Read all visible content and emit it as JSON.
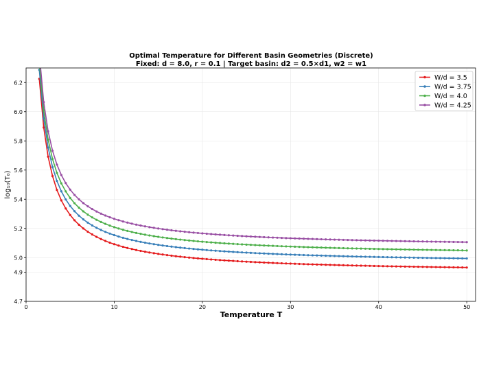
{
  "chart_data": {
    "type": "line",
    "title": "Optimal Temperature for Different Basin Geometries (Discrete)",
    "subtitle": "Fixed: d = 8.0, r = 0.1 | Target basin: d2 = 0.5×d1, w2 = w1",
    "xlabel": "Temperature T",
    "ylabel": "log₁₀(T₀)",
    "xlim": [
      0,
      51
    ],
    "ylim": [
      4.7,
      6.3
    ],
    "xticks": [
      0,
      10,
      20,
      30,
      40,
      50
    ],
    "yticks": [
      4.7,
      4.9,
      5.0,
      5.2,
      5.4,
      5.6,
      5.8,
      6.0,
      6.2
    ],
    "grid": true,
    "legend_position": "top-right",
    "x_start": 1.5,
    "x_end": 50,
    "x_step": 0.5,
    "series": [
      {
        "name": "W/d = 3.5",
        "color": "#e41a1c",
        "asymptote": 4.892,
        "coef": 2.0
      },
      {
        "name": "W/d = 3.75",
        "color": "#377eb8",
        "asymptote": 4.954,
        "coef": 2.0
      },
      {
        "name": "W/d = 4.0",
        "color": "#4daf4a",
        "asymptote": 5.009,
        "coef": 2.0
      },
      {
        "name": "W/d = 4.25",
        "color": "#984ea3",
        "asymptote": 5.066,
        "coef": 2.0
      }
    ]
  }
}
